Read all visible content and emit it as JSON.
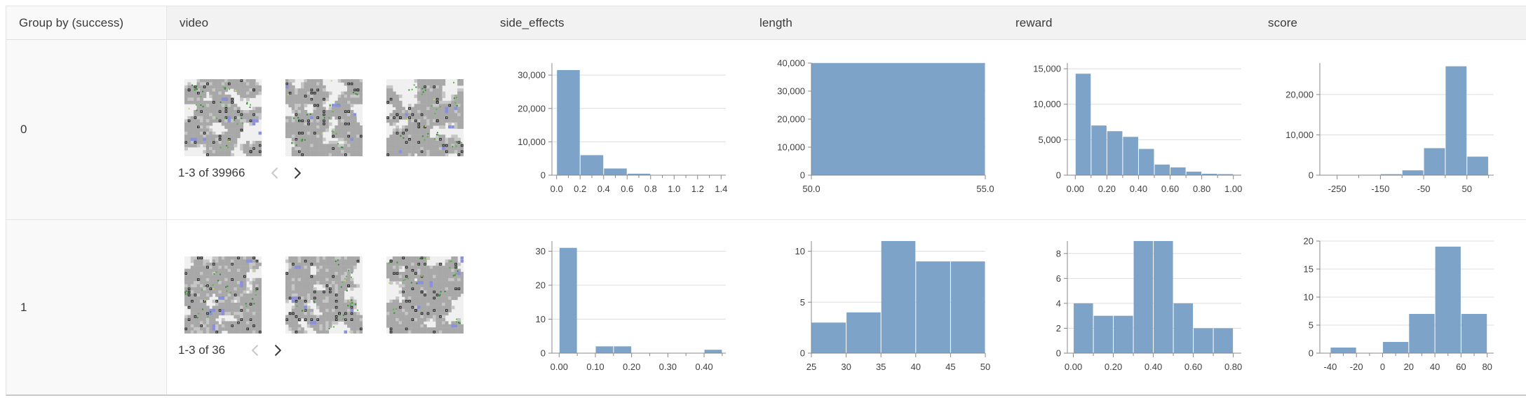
{
  "table": {
    "group_by_header": "Group by (success)",
    "columns": [
      "video",
      "side_effects",
      "length",
      "reward",
      "score"
    ],
    "rows": [
      {
        "group": "0",
        "pagination": "1-3 of 39966",
        "thumbnail_count": 3
      },
      {
        "group": "1",
        "pagination": "1-3 of 36",
        "thumbnail_count": 3
      }
    ]
  },
  "colors": {
    "histogram_bar": "#7da3c8",
    "axis_line": "#888888",
    "gridline": "#dddddd",
    "tick_label": "#3f3f3f",
    "header_bg": "#f2f2f2",
    "group_col_bg": "#f9f9f9",
    "table_border": "#e3e3e3",
    "bottom_border": "#c9c9c9",
    "text": "#383838",
    "pager_prev_disabled": "#c8c8c8",
    "pager_next": "#3a3a3a",
    "thumb_palette": {
      "path": "#f0f0f0",
      "terrain": "#a8a8a8",
      "terrain_light": "#c6c6c6",
      "wall": "#202020",
      "wall_dot": "#b8b8b8",
      "water": "#8b90dd",
      "tree": "#2f8f2f",
      "tree_bright": "#58b53e",
      "flower": "#d6d64f"
    }
  },
  "icons": {
    "previous_page": "chevron-left",
    "next_page": "chevron-right"
  },
  "chart_data": [
    {
      "type": "bar",
      "group": "0",
      "column": "side_effects",
      "xdomain": [
        -0.04,
        1.44
      ],
      "ylim": [
        0,
        33600
      ],
      "grid": true,
      "bins": [
        [
          0,
          0.2,
          31500
        ],
        [
          0.2,
          0.4,
          6000
        ],
        [
          0.4,
          0.6,
          2000
        ],
        [
          0.6,
          0.8,
          450
        ],
        [
          0.8,
          1.0,
          16
        ]
      ],
      "yticks": [
        [
          0,
          "0"
        ],
        [
          10000,
          "10,000"
        ],
        [
          20000,
          "20,000"
        ],
        [
          30000,
          "30,000"
        ]
      ],
      "xticks": [
        [
          0,
          "0.0"
        ],
        [
          0.1,
          ""
        ],
        [
          0.2,
          "0.2"
        ],
        [
          0.3,
          ""
        ],
        [
          0.4,
          "0.4"
        ],
        [
          0.5,
          ""
        ],
        [
          0.6,
          "0.6"
        ],
        [
          0.7,
          ""
        ],
        [
          0.8,
          "0.8"
        ],
        [
          0.9,
          ""
        ],
        [
          1.0,
          "1.0"
        ],
        [
          1.1,
          ""
        ],
        [
          1.2,
          "1.2"
        ],
        [
          1.3,
          ""
        ],
        [
          1.4,
          "1.4"
        ]
      ]
    },
    {
      "type": "bar",
      "group": "0",
      "column": "length",
      "xdomain": [
        50,
        55
      ],
      "ylim": [
        0,
        40000
      ],
      "grid": true,
      "bins": [
        [
          50,
          55,
          39966
        ]
      ],
      "yticks": [
        [
          0,
          "0"
        ],
        [
          10000,
          "10,000"
        ],
        [
          20000,
          "20,000"
        ],
        [
          30000,
          "30,000"
        ],
        [
          40000,
          "40,000"
        ]
      ],
      "xticks": [
        [
          50,
          "50.0"
        ],
        [
          55,
          "55.0"
        ]
      ]
    },
    {
      "type": "bar",
      "group": "0",
      "column": "reward",
      "xdomain": [
        -0.05,
        1.05
      ],
      "ylim": [
        0,
        15800
      ],
      "grid": true,
      "bins": [
        [
          0,
          0.1,
          14300
        ],
        [
          0.1,
          0.2,
          7000
        ],
        [
          0.2,
          0.3,
          6200
        ],
        [
          0.3,
          0.4,
          5400
        ],
        [
          0.4,
          0.5,
          3700
        ],
        [
          0.5,
          0.6,
          1500
        ],
        [
          0.6,
          0.7,
          1100
        ],
        [
          0.7,
          0.8,
          500
        ],
        [
          0.8,
          0.9,
          200
        ],
        [
          0.9,
          1.0,
          150
        ],
        [
          1.0,
          1.05,
          60
        ]
      ],
      "yticks": [
        [
          0,
          "0"
        ],
        [
          5000,
          "5,000"
        ],
        [
          10000,
          "10,000"
        ],
        [
          15000,
          "15,000"
        ]
      ],
      "xticks": [
        [
          0,
          "0.00"
        ],
        [
          0.1,
          ""
        ],
        [
          0.2,
          "0.20"
        ],
        [
          0.3,
          ""
        ],
        [
          0.4,
          "0.40"
        ],
        [
          0.5,
          ""
        ],
        [
          0.6,
          "0.60"
        ],
        [
          0.7,
          ""
        ],
        [
          0.8,
          "0.80"
        ],
        [
          0.9,
          ""
        ],
        [
          1.0,
          "1.00"
        ]
      ]
    },
    {
      "type": "bar",
      "group": "0",
      "column": "score",
      "xdomain": [
        -290,
        112
      ],
      "ylim": [
        0,
        27800
      ],
      "grid": true,
      "bins": [
        [
          -300,
          -250,
          80
        ],
        [
          -250,
          -200,
          80
        ],
        [
          -200,
          -150,
          100
        ],
        [
          -150,
          -100,
          250
        ],
        [
          -100,
          -50,
          1200
        ],
        [
          -50,
          0,
          6700
        ],
        [
          0,
          50,
          27000
        ],
        [
          50,
          100,
          4600
        ]
      ],
      "yticks": [
        [
          0,
          "0"
        ],
        [
          10000,
          "10,000"
        ],
        [
          20000,
          "20,000"
        ]
      ],
      "xticks": [
        [
          -250,
          "-250"
        ],
        [
          -200,
          ""
        ],
        [
          -150,
          "-150"
        ],
        [
          -100,
          ""
        ],
        [
          -50,
          "-50"
        ],
        [
          0,
          ""
        ],
        [
          50,
          "50"
        ],
        [
          100,
          ""
        ]
      ]
    },
    {
      "type": "bar",
      "group": "1",
      "column": "side_effects",
      "xdomain": [
        -0.02,
        0.46
      ],
      "ylim": [
        0,
        33
      ],
      "grid": true,
      "bins": [
        [
          0,
          0.05,
          31
        ],
        [
          0.1,
          0.15,
          2
        ],
        [
          0.15,
          0.2,
          2
        ],
        [
          0.4,
          0.45,
          1
        ]
      ],
      "yticks": [
        [
          0,
          "0"
        ],
        [
          10,
          "10"
        ],
        [
          20,
          "20"
        ],
        [
          30,
          "30"
        ]
      ],
      "xticks": [
        [
          0,
          "0.00"
        ],
        [
          0.05,
          ""
        ],
        [
          0.1,
          "0.10"
        ],
        [
          0.15,
          ""
        ],
        [
          0.2,
          "0.20"
        ],
        [
          0.25,
          ""
        ],
        [
          0.3,
          "0.30"
        ],
        [
          0.35,
          ""
        ],
        [
          0.4,
          "0.40"
        ],
        [
          0.45,
          ""
        ]
      ]
    },
    {
      "type": "bar",
      "group": "1",
      "column": "length",
      "xdomain": [
        25,
        50
      ],
      "ylim": [
        0,
        11
      ],
      "grid": true,
      "bins": [
        [
          25,
          30,
          3
        ],
        [
          30,
          35,
          4
        ],
        [
          35,
          40,
          11
        ],
        [
          40,
          45,
          9
        ],
        [
          45,
          50,
          9
        ]
      ],
      "yticks": [
        [
          0,
          "0"
        ],
        [
          5,
          "5"
        ],
        [
          10,
          "10"
        ]
      ],
      "xticks": [
        [
          25,
          "25"
        ],
        [
          30,
          "30"
        ],
        [
          35,
          "35"
        ],
        [
          40,
          "40"
        ],
        [
          45,
          "45"
        ],
        [
          50,
          "50"
        ]
      ]
    },
    {
      "type": "bar",
      "group": "1",
      "column": "reward",
      "xdomain": [
        -0.03,
        0.84
      ],
      "ylim": [
        0,
        9
      ],
      "grid": true,
      "bins": [
        [
          0,
          0.1,
          4
        ],
        [
          0.1,
          0.2,
          3
        ],
        [
          0.2,
          0.3,
          3
        ],
        [
          0.3,
          0.4,
          9
        ],
        [
          0.4,
          0.5,
          9
        ],
        [
          0.5,
          0.6,
          4
        ],
        [
          0.6,
          0.7,
          2
        ],
        [
          0.7,
          0.8,
          2
        ]
      ],
      "yticks": [
        [
          0,
          "0"
        ],
        [
          2,
          "2"
        ],
        [
          4,
          "4"
        ],
        [
          6,
          "6"
        ],
        [
          8,
          "8"
        ]
      ],
      "xticks": [
        [
          0,
          "0.00"
        ],
        [
          0.1,
          ""
        ],
        [
          0.2,
          "0.20"
        ],
        [
          0.3,
          ""
        ],
        [
          0.4,
          "0.40"
        ],
        [
          0.5,
          ""
        ],
        [
          0.6,
          "0.60"
        ],
        [
          0.7,
          ""
        ],
        [
          0.8,
          "0.80"
        ]
      ]
    },
    {
      "type": "bar",
      "group": "1",
      "column": "score",
      "xdomain": [
        -48,
        85
      ],
      "ylim": [
        0,
        20
      ],
      "grid": true,
      "bins": [
        [
          -40,
          -20,
          1
        ],
        [
          0,
          20,
          2
        ],
        [
          20,
          40,
          7
        ],
        [
          40,
          60,
          19
        ],
        [
          60,
          80,
          7
        ]
      ],
      "yticks": [
        [
          0,
          "0"
        ],
        [
          5,
          "5"
        ],
        [
          10,
          "10"
        ],
        [
          15,
          "15"
        ],
        [
          20,
          "20"
        ]
      ],
      "xticks": [
        [
          -40,
          "-40"
        ],
        [
          -30,
          ""
        ],
        [
          -20,
          "-20"
        ],
        [
          -10,
          ""
        ],
        [
          0,
          "0"
        ],
        [
          10,
          ""
        ],
        [
          20,
          "20"
        ],
        [
          30,
          ""
        ],
        [
          40,
          "40"
        ],
        [
          50,
          ""
        ],
        [
          60,
          "60"
        ],
        [
          70,
          ""
        ],
        [
          80,
          "80"
        ]
      ]
    }
  ]
}
